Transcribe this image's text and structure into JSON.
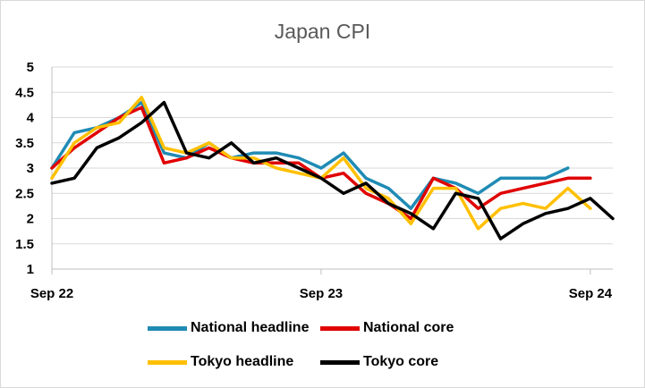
{
  "chart_data": {
    "type": "line",
    "title": "Japan CPI",
    "xlabel": "",
    "ylabel": "",
    "ylim": [
      1,
      5
    ],
    "yticks": [
      "1",
      "1.5",
      "2",
      "2.5",
      "3",
      "3.5",
      "4",
      "4.5",
      "5"
    ],
    "xtick_labels": [
      "Sep 22",
      "Sep 23",
      "Sep 24"
    ],
    "x": [
      "2022-09",
      "2022-10",
      "2022-11",
      "2022-12",
      "2023-01",
      "2023-02",
      "2023-03",
      "2023-04",
      "2023-05",
      "2023-06",
      "2023-07",
      "2023-08",
      "2023-09",
      "2023-10",
      "2023-11",
      "2023-12",
      "2024-01",
      "2024-02",
      "2024-03",
      "2024-04",
      "2024-05",
      "2024-06",
      "2024-07",
      "2024-08",
      "2024-09",
      "2024-10"
    ],
    "legend_position": "bottom",
    "grid": true,
    "series": [
      {
        "name": "National headline",
        "color": "#1f8bb4",
        "values": [
          3.0,
          3.7,
          3.8,
          4.0,
          4.3,
          3.3,
          3.2,
          3.5,
          3.2,
          3.3,
          3.3,
          3.2,
          3.0,
          3.3,
          2.8,
          2.6,
          2.2,
          2.8,
          2.7,
          2.5,
          2.8,
          2.8,
          2.8,
          3.0,
          null,
          null
        ]
      },
      {
        "name": "National core",
        "color": "#e00000",
        "values": [
          3.0,
          3.4,
          3.7,
          4.0,
          4.2,
          3.1,
          3.2,
          3.4,
          3.2,
          3.1,
          3.1,
          3.1,
          2.8,
          2.9,
          2.5,
          2.3,
          2.0,
          2.8,
          2.6,
          2.2,
          2.5,
          2.6,
          2.7,
          2.8,
          2.8,
          null
        ]
      },
      {
        "name": "Tokyo headline",
        "color": "#ffc000",
        "values": [
          2.8,
          3.5,
          3.8,
          3.9,
          4.4,
          3.4,
          3.3,
          3.5,
          3.2,
          3.2,
          3.0,
          2.9,
          2.8,
          3.2,
          2.6,
          2.4,
          1.9,
          2.6,
          2.6,
          1.8,
          2.2,
          2.3,
          2.2,
          2.6,
          2.2,
          null
        ]
      },
      {
        "name": "Tokyo core",
        "color": "#000000",
        "values": [
          2.7,
          2.8,
          3.4,
          3.6,
          3.9,
          4.3,
          3.3,
          3.2,
          3.5,
          3.1,
          3.2,
          3.0,
          2.8,
          2.5,
          2.7,
          2.3,
          2.1,
          1.8,
          2.5,
          2.4,
          1.6,
          1.9,
          2.1,
          2.2,
          2.4,
          2.0
        ]
      }
    ]
  }
}
